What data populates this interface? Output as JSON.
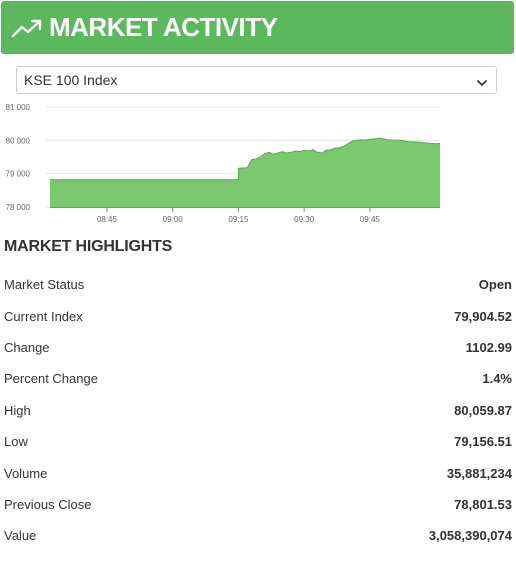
{
  "header": {
    "title": "MARKET ACTIVITY",
    "icon": "trending-up-icon",
    "color": "#5cb85c"
  },
  "index_select": {
    "selected": "KSE 100 Index"
  },
  "chart_data": {
    "type": "area",
    "color": "#7bc96f",
    "y_ticks": [
      "78 000",
      "79 000",
      "80 000",
      "81 000"
    ],
    "ylim": [
      78000,
      81000
    ],
    "x_ticks": [
      "08:45",
      "09:00",
      "09:15",
      "09:30",
      "09:45"
    ],
    "xlim": [
      "08:32",
      "10:01"
    ],
    "series": [
      {
        "x": [
          "08:32",
          "09:15",
          "09:15",
          "09:17",
          "09:18",
          "09:19",
          "09:20",
          "09:21",
          "09:22",
          "09:23",
          "09:24",
          "09:25",
          "09:26",
          "09:27",
          "09:28",
          "09:29",
          "09:30",
          "09:31",
          "09:32",
          "09:33",
          "09:34",
          "09:35",
          "09:36",
          "09:37",
          "09:38",
          "09:39",
          "09:40",
          "09:41",
          "09:42",
          "09:43",
          "09:44",
          "09:45",
          "09:46",
          "09:47",
          "09:48",
          "09:49",
          "09:50",
          "09:52",
          "09:54",
          "09:56",
          "09:58",
          "10:00",
          "10:01"
        ],
        "y": [
          78820,
          78820,
          79160,
          79180,
          79420,
          79440,
          79500,
          79600,
          79640,
          79580,
          79620,
          79660,
          79620,
          79640,
          79680,
          79660,
          79700,
          79680,
          79720,
          79640,
          79620,
          79700,
          79720,
          79760,
          79780,
          79820,
          79900,
          79980,
          80000,
          80020,
          80010,
          80030,
          80040,
          80060,
          80050,
          80020,
          80010,
          80000,
          79960,
          79950,
          79920,
          79900,
          79905
        ]
      }
    ],
    "grid": "horizontal"
  },
  "highlights": {
    "title": "MARKET HIGHLIGHTS",
    "rows": [
      {
        "label": "Market Status",
        "value": "Open"
      },
      {
        "label": "Current Index",
        "value": "79,904.52"
      },
      {
        "label": "Change",
        "value": "1102.99"
      },
      {
        "label": "Percent Change",
        "value": "1.4%"
      },
      {
        "label": "High",
        "value": "80,059.87"
      },
      {
        "label": "Low",
        "value": "79,156.51"
      },
      {
        "label": "Volume",
        "value": "35,881,234"
      },
      {
        "label": "Previous Close",
        "value": "78,801.53"
      },
      {
        "label": "Value",
        "value": "3,058,390,074"
      }
    ]
  }
}
